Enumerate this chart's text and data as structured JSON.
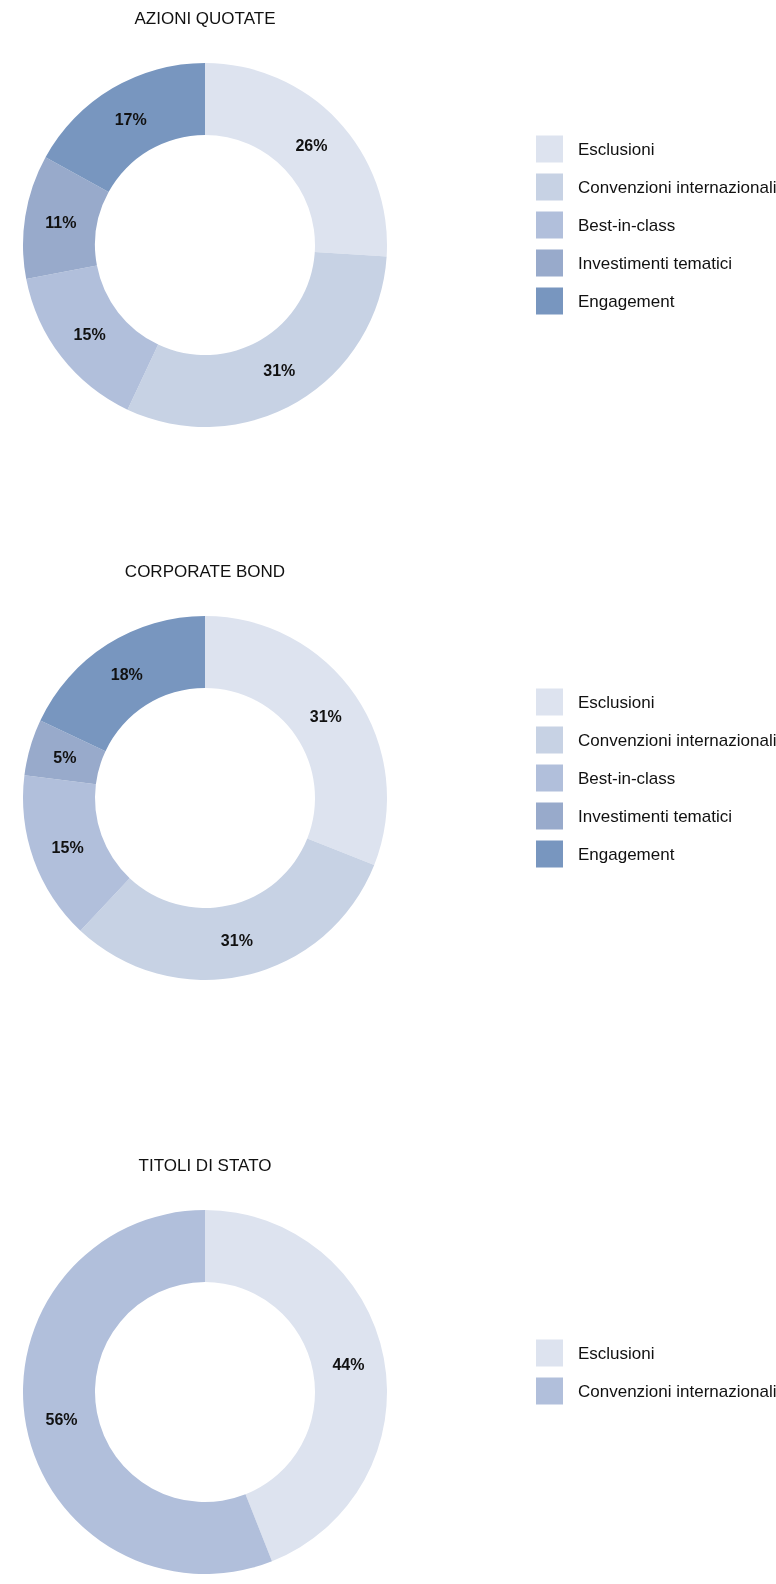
{
  "chart_data": [
    {
      "type": "donut",
      "title": "AZIONI QUOTATE",
      "categories": [
        "Esclusioni",
        "Convenzioni internazionali",
        "Best-in-class",
        "Investimenti tematici",
        "Engagement"
      ],
      "values": [
        26,
        31,
        15,
        11,
        17
      ],
      "value_labels": [
        "26%",
        "31%",
        "15%",
        "11%",
        "17%"
      ],
      "colors": [
        "#dde3ef",
        "#c7d2e4",
        "#b1bfdb",
        "#98aacb",
        "#7896bf"
      ],
      "legend": "right"
    },
    {
      "type": "donut",
      "title": "CORPORATE BOND",
      "categories": [
        "Esclusioni",
        "Convenzioni internazionali",
        "Best-in-class",
        "Investimenti tematici",
        "Engagement"
      ],
      "values": [
        31,
        31,
        15,
        5,
        18
      ],
      "value_labels": [
        "31%",
        "31%",
        "15%",
        "5%",
        "18%"
      ],
      "colors": [
        "#dde3ef",
        "#c7d2e4",
        "#b1bfdb",
        "#98aacb",
        "#7896bf"
      ],
      "legend": "right"
    },
    {
      "type": "donut",
      "title": "TITOLI DI STATO",
      "categories": [
        "Esclusioni",
        "Convenzioni internazionali"
      ],
      "values": [
        44,
        56
      ],
      "value_labels": [
        "44%",
        "56%"
      ],
      "colors": [
        "#dde3ef",
        "#b1bfdb"
      ],
      "legend": "right"
    }
  ]
}
